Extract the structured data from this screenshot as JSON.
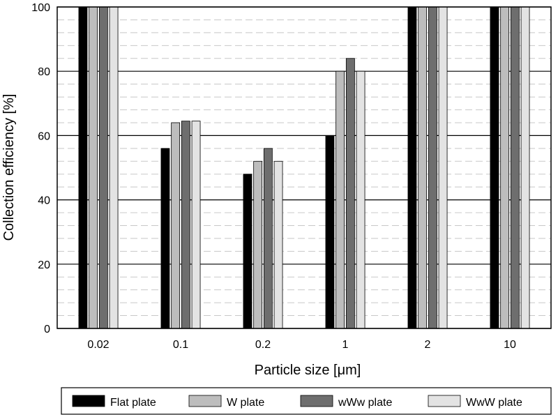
{
  "chart_data": {
    "type": "bar",
    "xlabel": "Particle size [μm]",
    "ylabel": "Collection efficiency [%]",
    "ylim": [
      0,
      100
    ],
    "yticks": [
      0,
      20,
      40,
      60,
      80,
      100
    ],
    "grid": "major solid, minor dashed every 4",
    "legend_position": "bottom",
    "categories": [
      "0.02",
      "0.1",
      "0.2",
      "1",
      "2",
      "10"
    ],
    "series": [
      {
        "name": "Flat plate",
        "color": "#000000",
        "values": [
          100,
          56,
          48,
          60,
          100,
          100
        ]
      },
      {
        "name": "W plate",
        "color": "#bdbdbd",
        "values": [
          100,
          64,
          52,
          80,
          100,
          100
        ]
      },
      {
        "name": "wWw plate",
        "color": "#6e6e6e",
        "values": [
          100,
          64.5,
          56,
          84,
          100,
          100
        ]
      },
      {
        "name": "WwW plate",
        "color": "#e3e3e3",
        "values": [
          100,
          64.5,
          52,
          80,
          100,
          100
        ]
      }
    ]
  }
}
